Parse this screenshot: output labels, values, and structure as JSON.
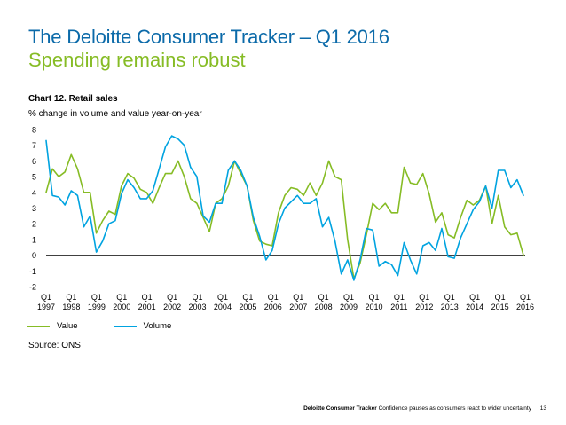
{
  "header": {
    "title": "The Deloitte Consumer Tracker – Q1 2016",
    "subtitle": "Spending remains robust"
  },
  "chart_meta": {
    "title": "Chart 12. Retail sales",
    "subtitle": "% change in volume and value year-on-year"
  },
  "colors": {
    "title": "#0b6aa9",
    "subtitle": "#86bc25",
    "value": "#86bc25",
    "volume": "#00a3e0"
  },
  "chart_data": {
    "type": "line",
    "title": "Chart 12. Retail sales",
    "ylabel": "% change in volume and value year-on-year",
    "xlabel": "",
    "ylim": [
      -2,
      8
    ],
    "yticks": [
      -2,
      -1,
      0,
      1,
      2,
      3,
      4,
      5,
      6,
      7,
      8
    ],
    "xtick_labels": [
      [
        "Q1",
        "1997"
      ],
      [
        "Q1",
        "1998"
      ],
      [
        "Q1",
        "1999"
      ],
      [
        "Q1",
        "2000"
      ],
      [
        "Q1",
        "2001"
      ],
      [
        "Q1",
        "2002"
      ],
      [
        "Q1",
        "2003"
      ],
      [
        "Q1",
        "2004"
      ],
      [
        "Q1",
        "2005"
      ],
      [
        "Q1",
        "2006"
      ],
      [
        "Q1",
        "2007"
      ],
      [
        "Q1",
        "2008"
      ],
      [
        "Q1",
        "2009"
      ],
      [
        "Q1",
        "2010"
      ],
      [
        "Q1",
        "2011"
      ],
      [
        "Q1",
        "2012"
      ],
      [
        "Q1",
        "2013"
      ],
      [
        "Q1",
        "2014"
      ],
      [
        "Q1",
        "2015"
      ],
      [
        "Q1",
        "2016"
      ]
    ],
    "legend_position": "bottom-left",
    "series": [
      {
        "name": "Value",
        "color": "#86bc25",
        "values": [
          4.0,
          5.5,
          5.0,
          5.3,
          6.4,
          5.5,
          4.0,
          4.0,
          1.4,
          2.2,
          2.8,
          2.6,
          4.4,
          5.2,
          4.9,
          4.2,
          4.0,
          3.3,
          4.3,
          5.2,
          5.2,
          6.0,
          5.0,
          3.6,
          3.3,
          2.4,
          1.5,
          3.3,
          3.6,
          4.4,
          6.0,
          5.2,
          4.4,
          2.2,
          0.9,
          0.7,
          0.6,
          2.7,
          3.8,
          4.3,
          4.2,
          3.8,
          4.6,
          3.8,
          4.6,
          6.0,
          5.0,
          4.8,
          1.0,
          -1.5,
          -0.5,
          1.3,
          3.3,
          2.9,
          3.3,
          2.7,
          2.7,
          5.6,
          4.6,
          4.5,
          5.2,
          3.9,
          2.1,
          2.7,
          1.3,
          1.1,
          2.4,
          3.5,
          3.2,
          3.5,
          4.4,
          2.0,
          3.8,
          1.8,
          1.3,
          1.4,
          0.0
        ]
      },
      {
        "name": "Volume",
        "color": "#00a3e0",
        "values": [
          7.3,
          3.8,
          3.7,
          3.2,
          4.1,
          3.8,
          1.8,
          2.5,
          0.2,
          0.9,
          2.0,
          2.2,
          3.9,
          4.8,
          4.3,
          3.6,
          3.6,
          4.1,
          5.5,
          6.9,
          7.6,
          7.4,
          7.0,
          5.6,
          5.0,
          2.5,
          2.1,
          3.3,
          3.3,
          5.4,
          6.0,
          5.4,
          4.4,
          2.4,
          1.2,
          -0.3,
          0.3,
          2.0,
          3.0,
          3.4,
          3.8,
          3.3,
          3.3,
          3.6,
          1.8,
          2.4,
          0.9,
          -1.2,
          -0.3,
          -1.6,
          -0.3,
          1.7,
          1.6,
          -0.7,
          -0.4,
          -0.6,
          -1.3,
          0.8,
          -0.3,
          -1.2,
          0.6,
          0.8,
          0.3,
          1.7,
          -0.1,
          -0.2,
          1.1,
          2.0,
          2.9,
          3.4,
          4.4,
          3.0,
          5.4,
          5.4,
          4.3,
          4.8,
          3.8
        ]
      }
    ]
  },
  "legend": {
    "items": [
      {
        "label": "Value",
        "color": "#86bc25"
      },
      {
        "label": "Volume",
        "color": "#00a3e0"
      }
    ]
  },
  "source": "Source: ONS",
  "footer": {
    "brand": "Deloitte Consumer Tracker",
    "tagline": "Confidence pauses as consumers react to wider uncertainty",
    "page": "13"
  }
}
